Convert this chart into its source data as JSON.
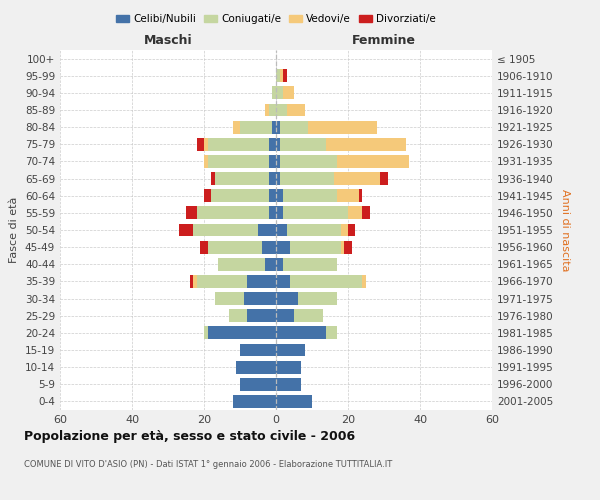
{
  "age_groups": [
    "100+",
    "95-99",
    "90-94",
    "85-89",
    "80-84",
    "75-79",
    "70-74",
    "65-69",
    "60-64",
    "55-59",
    "50-54",
    "45-49",
    "40-44",
    "35-39",
    "30-34",
    "25-29",
    "20-24",
    "15-19",
    "10-14",
    "5-9",
    "0-4"
  ],
  "birth_years": [
    "≤ 1905",
    "1906-1910",
    "1911-1915",
    "1916-1920",
    "1921-1925",
    "1926-1930",
    "1931-1935",
    "1936-1940",
    "1941-1945",
    "1946-1950",
    "1951-1955",
    "1956-1960",
    "1961-1965",
    "1966-1970",
    "1971-1975",
    "1976-1980",
    "1981-1985",
    "1986-1990",
    "1991-1995",
    "1996-2000",
    "2001-2005"
  ],
  "male": {
    "celibi": [
      0,
      0,
      0,
      0,
      1,
      2,
      2,
      2,
      2,
      2,
      5,
      4,
      3,
      8,
      9,
      8,
      19,
      10,
      11,
      10,
      12
    ],
    "coniugati": [
      0,
      0,
      1,
      2,
      9,
      17,
      17,
      15,
      16,
      20,
      18,
      15,
      13,
      14,
      8,
      5,
      1,
      0,
      0,
      0,
      0
    ],
    "vedovi": [
      0,
      0,
      0,
      1,
      2,
      1,
      1,
      0,
      0,
      0,
      0,
      0,
      0,
      1,
      0,
      0,
      0,
      0,
      0,
      0,
      0
    ],
    "divorziati": [
      0,
      0,
      0,
      0,
      0,
      2,
      0,
      1,
      2,
      3,
      4,
      2,
      0,
      1,
      0,
      0,
      0,
      0,
      0,
      0,
      0
    ]
  },
  "female": {
    "nubili": [
      0,
      0,
      0,
      0,
      1,
      1,
      1,
      1,
      2,
      2,
      3,
      4,
      2,
      4,
      6,
      5,
      14,
      8,
      7,
      7,
      10
    ],
    "coniugate": [
      0,
      1,
      2,
      3,
      8,
      13,
      16,
      15,
      15,
      18,
      15,
      14,
      15,
      20,
      11,
      8,
      3,
      0,
      0,
      0,
      0
    ],
    "vedove": [
      0,
      1,
      3,
      5,
      19,
      22,
      20,
      13,
      6,
      4,
      2,
      1,
      0,
      1,
      0,
      0,
      0,
      0,
      0,
      0,
      0
    ],
    "divorziate": [
      0,
      1,
      0,
      0,
      0,
      0,
      0,
      2,
      1,
      2,
      2,
      2,
      0,
      0,
      0,
      0,
      0,
      0,
      0,
      0,
      0
    ]
  },
  "colors": {
    "celibi_nubili": "#4472a8",
    "coniugati": "#c5d6a0",
    "vedovi": "#f5c97a",
    "divorziati": "#cc1e1e"
  },
  "title": "Popolazione per età, sesso e stato civile - 2006",
  "subtitle": "COMUNE DI VITO D'ASIO (PN) - Dati ISTAT 1° gennaio 2006 - Elaborazione TUTTITALIA.IT",
  "xlabel_left": "Maschi",
  "xlabel_right": "Femmine",
  "ylabel_left": "Fasce di età",
  "ylabel_right": "Anni di nascita",
  "xlim": 60,
  "bg_color": "#f0f0f0",
  "plot_bg": "#ffffff",
  "legend_labels": [
    "Celibi/Nubili",
    "Coniugati/e",
    "Vedovi/e",
    "Divorziati/e"
  ]
}
